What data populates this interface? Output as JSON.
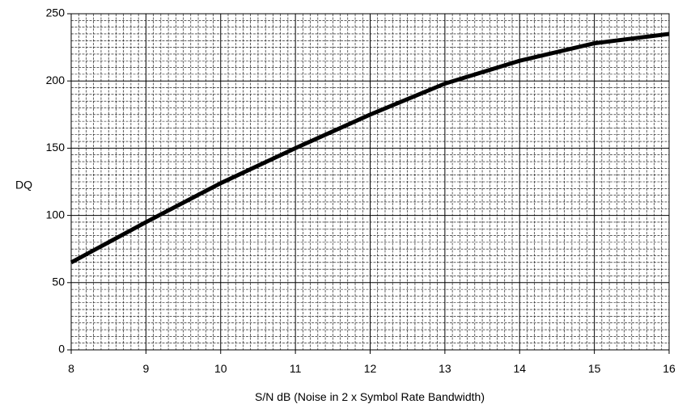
{
  "chart_data": {
    "type": "line",
    "title": "",
    "xlabel": "S/N dB (Noise in 2 x Symbol Rate Bandwidth)",
    "ylabel": "DQ",
    "xlim": [
      8,
      16
    ],
    "ylim": [
      0,
      250
    ],
    "x_ticks": [
      "8",
      "9",
      "10",
      "11",
      "12",
      "13",
      "14",
      "15",
      "16"
    ],
    "y_ticks": [
      "0",
      "50",
      "100",
      "150",
      "200",
      "250"
    ],
    "grid": true,
    "legend": "none",
    "line_color": "#000000",
    "series": [
      {
        "x": [
          8,
          9,
          10,
          11,
          12,
          13,
          14,
          15,
          16
        ],
        "values": [
          65,
          95,
          124,
          150,
          175,
          198,
          215,
          228,
          235
        ]
      }
    ]
  }
}
